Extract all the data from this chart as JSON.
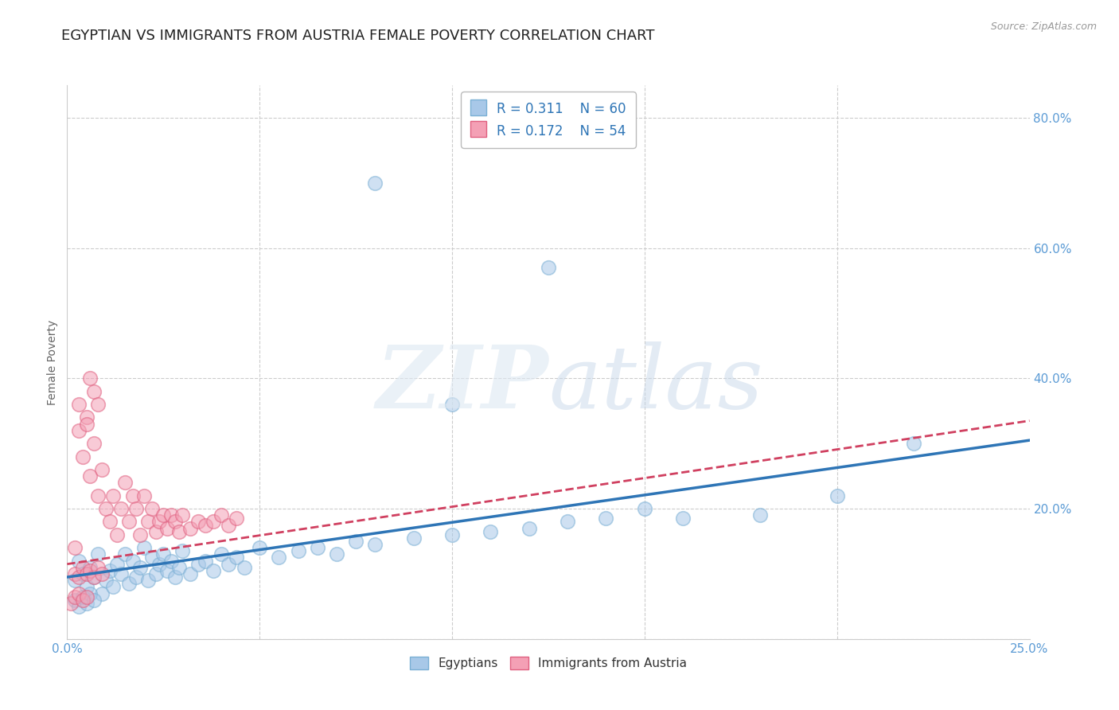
{
  "title": "EGYPTIAN VS IMMIGRANTS FROM AUSTRIA FEMALE POVERTY CORRELATION CHART",
  "source": "Source: ZipAtlas.com",
  "ylabel": "Female Poverty",
  "xlim": [
    0.0,
    0.25
  ],
  "ylim": [
    0.0,
    0.85
  ],
  "xticks": [
    0.0,
    0.05,
    0.1,
    0.15,
    0.2,
    0.25
  ],
  "xticklabels": [
    "0.0%",
    "",
    "",
    "",
    "",
    "25.0%"
  ],
  "yticks": [
    0.0,
    0.2,
    0.4,
    0.6,
    0.8
  ],
  "yticklabels": [
    "",
    "20.0%",
    "40.0%",
    "60.0%",
    "80.0%"
  ],
  "legend_label_blue": "Egyptians",
  "legend_label_pink": "Immigrants from Austria",
  "blue_color": "#a8c8e8",
  "pink_color": "#f4a0b5",
  "blue_edge": "#7aafd4",
  "pink_edge": "#e06080",
  "blue_scatter": [
    [
      0.002,
      0.09
    ],
    [
      0.003,
      0.12
    ],
    [
      0.004,
      0.1
    ],
    [
      0.005,
      0.08
    ],
    [
      0.006,
      0.11
    ],
    [
      0.007,
      0.095
    ],
    [
      0.008,
      0.13
    ],
    [
      0.009,
      0.07
    ],
    [
      0.01,
      0.09
    ],
    [
      0.011,
      0.105
    ],
    [
      0.012,
      0.08
    ],
    [
      0.013,
      0.115
    ],
    [
      0.014,
      0.1
    ],
    [
      0.015,
      0.13
    ],
    [
      0.016,
      0.085
    ],
    [
      0.017,
      0.12
    ],
    [
      0.018,
      0.095
    ],
    [
      0.019,
      0.11
    ],
    [
      0.02,
      0.14
    ],
    [
      0.021,
      0.09
    ],
    [
      0.022,
      0.125
    ],
    [
      0.023,
      0.1
    ],
    [
      0.024,
      0.115
    ],
    [
      0.025,
      0.13
    ],
    [
      0.026,
      0.105
    ],
    [
      0.027,
      0.12
    ],
    [
      0.028,
      0.095
    ],
    [
      0.029,
      0.11
    ],
    [
      0.03,
      0.135
    ],
    [
      0.032,
      0.1
    ],
    [
      0.034,
      0.115
    ],
    [
      0.036,
      0.12
    ],
    [
      0.038,
      0.105
    ],
    [
      0.04,
      0.13
    ],
    [
      0.042,
      0.115
    ],
    [
      0.044,
      0.125
    ],
    [
      0.046,
      0.11
    ],
    [
      0.05,
      0.14
    ],
    [
      0.055,
      0.125
    ],
    [
      0.06,
      0.135
    ],
    [
      0.065,
      0.14
    ],
    [
      0.07,
      0.13
    ],
    [
      0.075,
      0.15
    ],
    [
      0.08,
      0.145
    ],
    [
      0.09,
      0.155
    ],
    [
      0.1,
      0.16
    ],
    [
      0.11,
      0.165
    ],
    [
      0.12,
      0.17
    ],
    [
      0.13,
      0.18
    ],
    [
      0.14,
      0.185
    ],
    [
      0.002,
      0.06
    ],
    [
      0.003,
      0.05
    ],
    [
      0.004,
      0.065
    ],
    [
      0.005,
      0.055
    ],
    [
      0.006,
      0.07
    ],
    [
      0.007,
      0.06
    ],
    [
      0.15,
      0.2
    ],
    [
      0.16,
      0.185
    ],
    [
      0.2,
      0.22
    ],
    [
      0.22,
      0.3
    ]
  ],
  "blue_scatter_outliers": [
    [
      0.08,
      0.7
    ],
    [
      0.125,
      0.57
    ],
    [
      0.1,
      0.36
    ],
    [
      0.18,
      0.19
    ]
  ],
  "pink_scatter": [
    [
      0.002,
      0.14
    ],
    [
      0.003,
      0.32
    ],
    [
      0.004,
      0.28
    ],
    [
      0.005,
      0.34
    ],
    [
      0.006,
      0.25
    ],
    [
      0.007,
      0.3
    ],
    [
      0.008,
      0.22
    ],
    [
      0.009,
      0.26
    ],
    [
      0.01,
      0.2
    ],
    [
      0.011,
      0.18
    ],
    [
      0.012,
      0.22
    ],
    [
      0.013,
      0.16
    ],
    [
      0.014,
      0.2
    ],
    [
      0.015,
      0.24
    ],
    [
      0.016,
      0.18
    ],
    [
      0.017,
      0.22
    ],
    [
      0.018,
      0.2
    ],
    [
      0.019,
      0.16
    ],
    [
      0.02,
      0.22
    ],
    [
      0.021,
      0.18
    ],
    [
      0.022,
      0.2
    ],
    [
      0.023,
      0.165
    ],
    [
      0.024,
      0.18
    ],
    [
      0.025,
      0.19
    ],
    [
      0.026,
      0.17
    ],
    [
      0.027,
      0.19
    ],
    [
      0.028,
      0.18
    ],
    [
      0.029,
      0.165
    ],
    [
      0.03,
      0.19
    ],
    [
      0.032,
      0.17
    ],
    [
      0.034,
      0.18
    ],
    [
      0.036,
      0.175
    ],
    [
      0.038,
      0.18
    ],
    [
      0.04,
      0.19
    ],
    [
      0.042,
      0.175
    ],
    [
      0.044,
      0.185
    ],
    [
      0.002,
      0.1
    ],
    [
      0.003,
      0.095
    ],
    [
      0.004,
      0.11
    ],
    [
      0.005,
      0.1
    ],
    [
      0.006,
      0.105
    ],
    [
      0.007,
      0.095
    ],
    [
      0.008,
      0.11
    ],
    [
      0.009,
      0.1
    ],
    [
      0.003,
      0.36
    ],
    [
      0.005,
      0.33
    ],
    [
      0.006,
      0.4
    ],
    [
      0.007,
      0.38
    ],
    [
      0.008,
      0.36
    ],
    [
      0.001,
      0.055
    ],
    [
      0.002,
      0.065
    ],
    [
      0.003,
      0.07
    ],
    [
      0.004,
      0.06
    ],
    [
      0.005,
      0.065
    ]
  ],
  "background_color": "#ffffff",
  "grid_color": "#cccccc",
  "title_fontsize": 13,
  "tick_color": "#5b9bd5",
  "trendline_blue_x0": 0.0,
  "trendline_blue_y0": 0.095,
  "trendline_blue_x1": 0.25,
  "trendline_blue_y1": 0.305,
  "trendline_pink_x0": 0.0,
  "trendline_pink_y0": 0.115,
  "trendline_pink_x1": 0.25,
  "trendline_pink_y1": 0.335
}
